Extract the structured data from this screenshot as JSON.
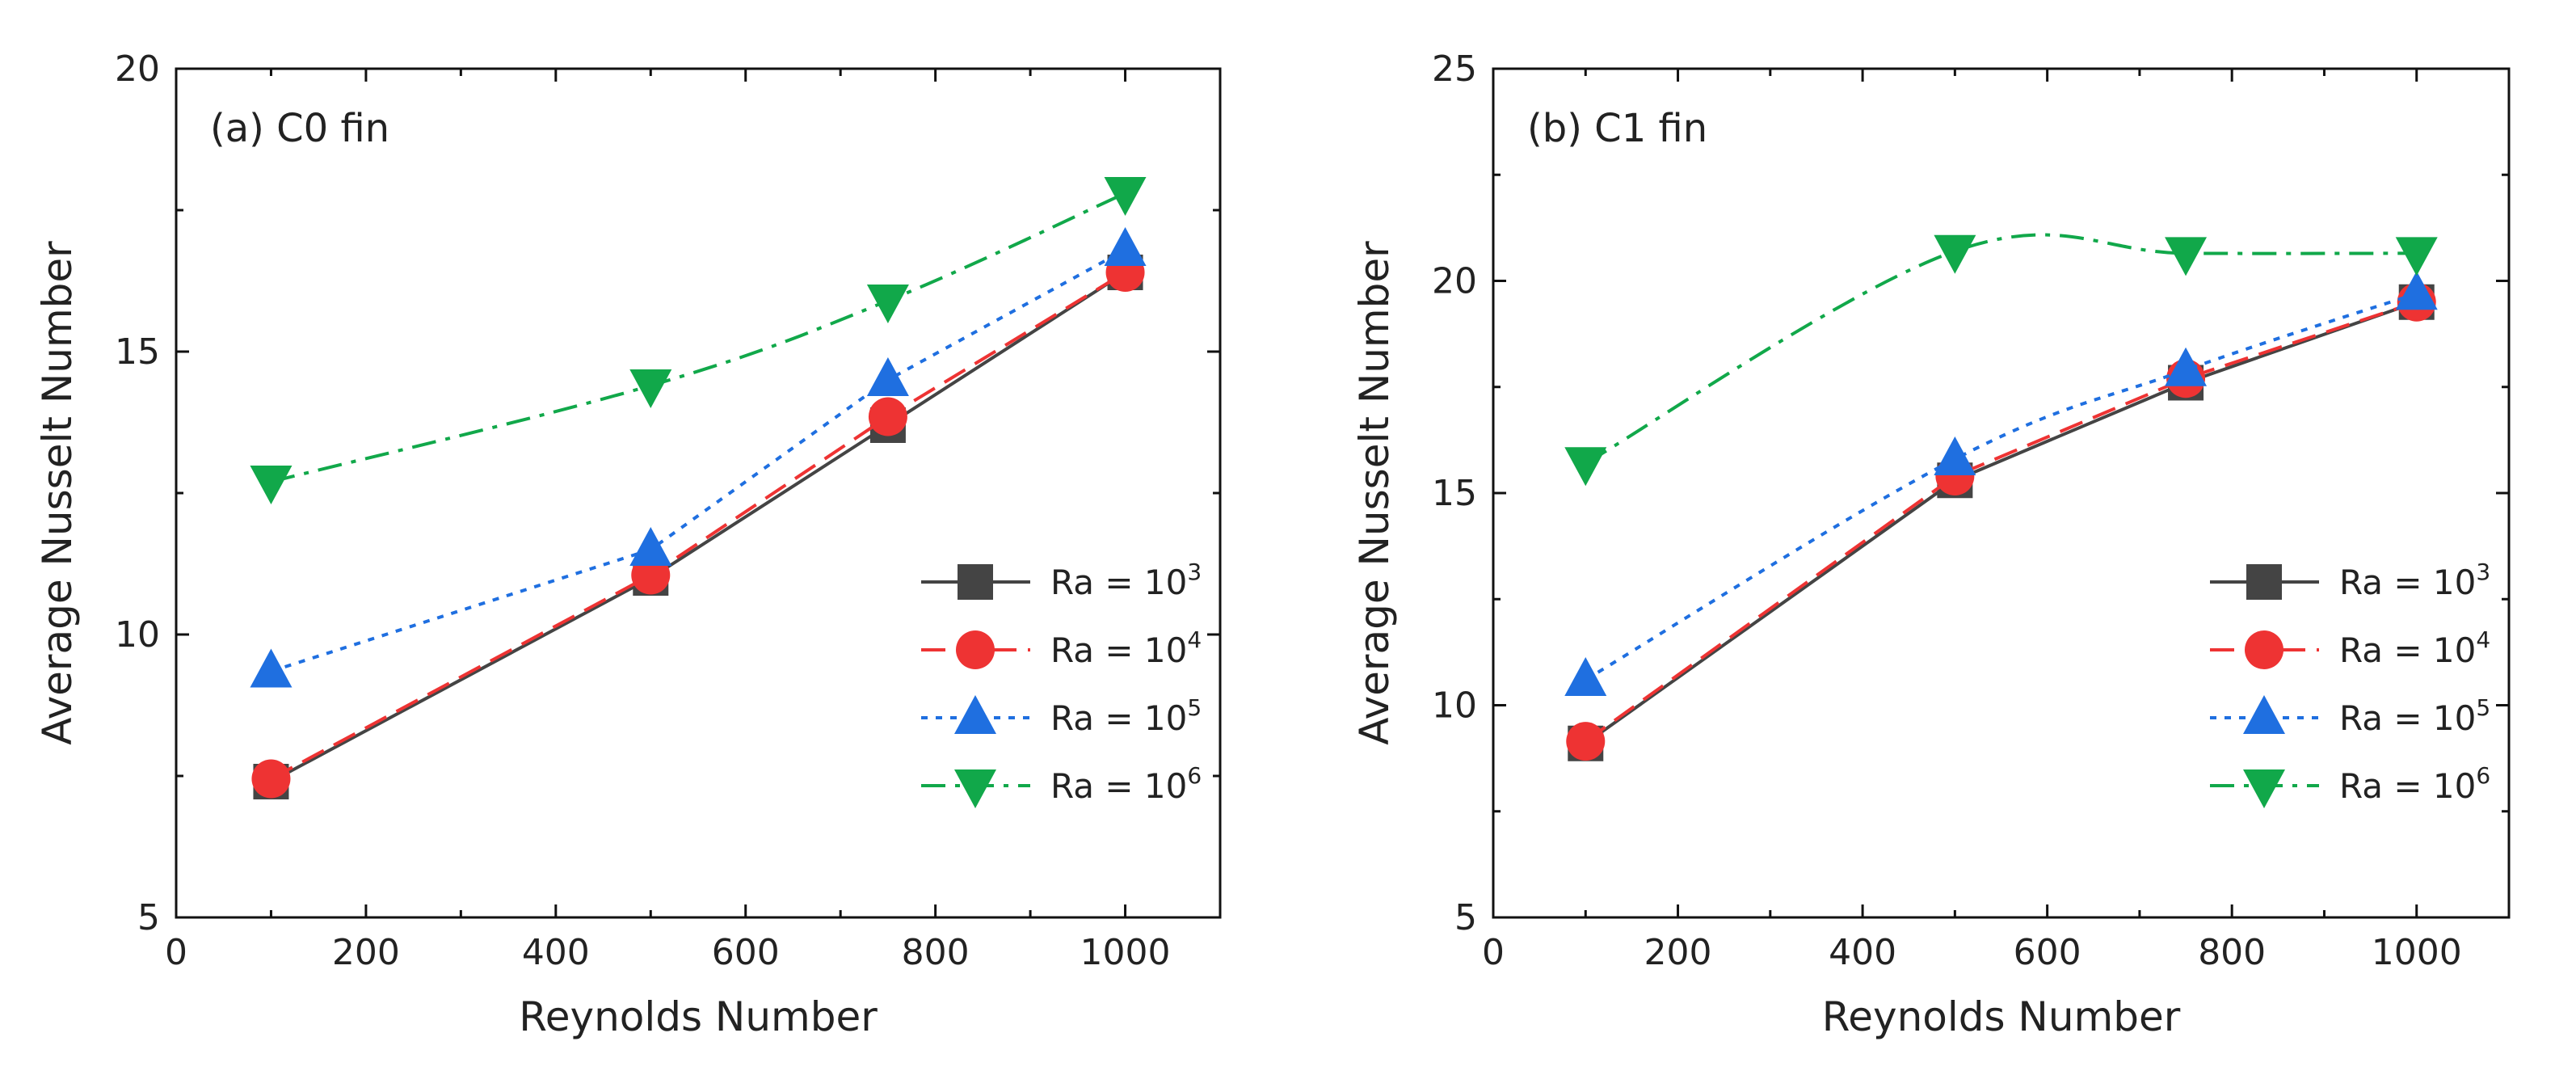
{
  "chart_data": [
    {
      "type": "line",
      "title": "(a) C0 fin",
      "xlabel": "Reynolds Number",
      "ylabel": "Average Nusselt Number",
      "xlim": [
        0,
        1100
      ],
      "ylim": [
        5,
        20
      ],
      "xticks": [
        0,
        200,
        400,
        600,
        800,
        1000
      ],
      "yticks": [
        5,
        10,
        15,
        20
      ],
      "legend_position": "lower-right",
      "series": [
        {
          "name_prefix": "Ra = 10",
          "name_exp": "3",
          "marker": "square",
          "line": "solid",
          "color": "#444444",
          "x": [
            100,
            500,
            750,
            1000
          ],
          "y": [
            7.4,
            11.0,
            13.7,
            16.4
          ]
        },
        {
          "name_prefix": "Ra = 10",
          "name_exp": "4",
          "marker": "circle",
          "line": "dashed",
          "color": "#ee3333",
          "x": [
            100,
            500,
            750,
            1000
          ],
          "y": [
            7.45,
            11.05,
            13.85,
            16.4
          ]
        },
        {
          "name_prefix": "Ra = 10",
          "name_exp": "5",
          "marker": "triangle-up",
          "line": "dotted",
          "color": "#1f6fe0",
          "x": [
            100,
            500,
            750,
            1000
          ],
          "y": [
            9.35,
            11.5,
            14.5,
            16.8
          ]
        },
        {
          "name_prefix": "Ra = 10",
          "name_exp": "6",
          "marker": "triangle-down",
          "line": "dashdot",
          "color": "#11a84a",
          "x": [
            100,
            500,
            750,
            1000
          ],
          "y": [
            12.7,
            14.4,
            15.9,
            17.8
          ]
        }
      ]
    },
    {
      "type": "line",
      "title": "(b) C1 fin",
      "xlabel": "Reynolds Number",
      "ylabel": "Average Nusselt Number",
      "xlim": [
        0,
        1100
      ],
      "ylim": [
        5,
        25
      ],
      "xticks": [
        0,
        200,
        400,
        600,
        800,
        1000
      ],
      "yticks": [
        5,
        10,
        15,
        20,
        25
      ],
      "legend_position": "lower-right",
      "series": [
        {
          "name_prefix": "Ra = 10",
          "name_exp": "3",
          "marker": "square",
          "line": "solid",
          "color": "#444444",
          "x": [
            100,
            500,
            750,
            1000
          ],
          "y": [
            9.1,
            15.3,
            17.6,
            19.5
          ]
        },
        {
          "name_prefix": "Ra = 10",
          "name_exp": "4",
          "marker": "circle",
          "line": "dashed",
          "color": "#ee3333",
          "x": [
            100,
            500,
            750,
            1000
          ],
          "y": [
            9.15,
            15.4,
            17.7,
            19.5
          ]
        },
        {
          "name_prefix": "Ra = 10",
          "name_exp": "5",
          "marker": "triangle-up",
          "line": "dotted",
          "color": "#1f6fe0",
          "x": [
            100,
            500,
            750,
            1000
          ],
          "y": [
            10.6,
            15.8,
            17.9,
            19.7
          ]
        },
        {
          "name_prefix": "Ra = 10",
          "name_exp": "6",
          "marker": "triangle-down",
          "line": "dashdot",
          "color": "#11a84a",
          "x": [
            100,
            500,
            750,
            1000
          ],
          "y": [
            15.7,
            20.7,
            20.65,
            20.65
          ]
        }
      ]
    }
  ]
}
